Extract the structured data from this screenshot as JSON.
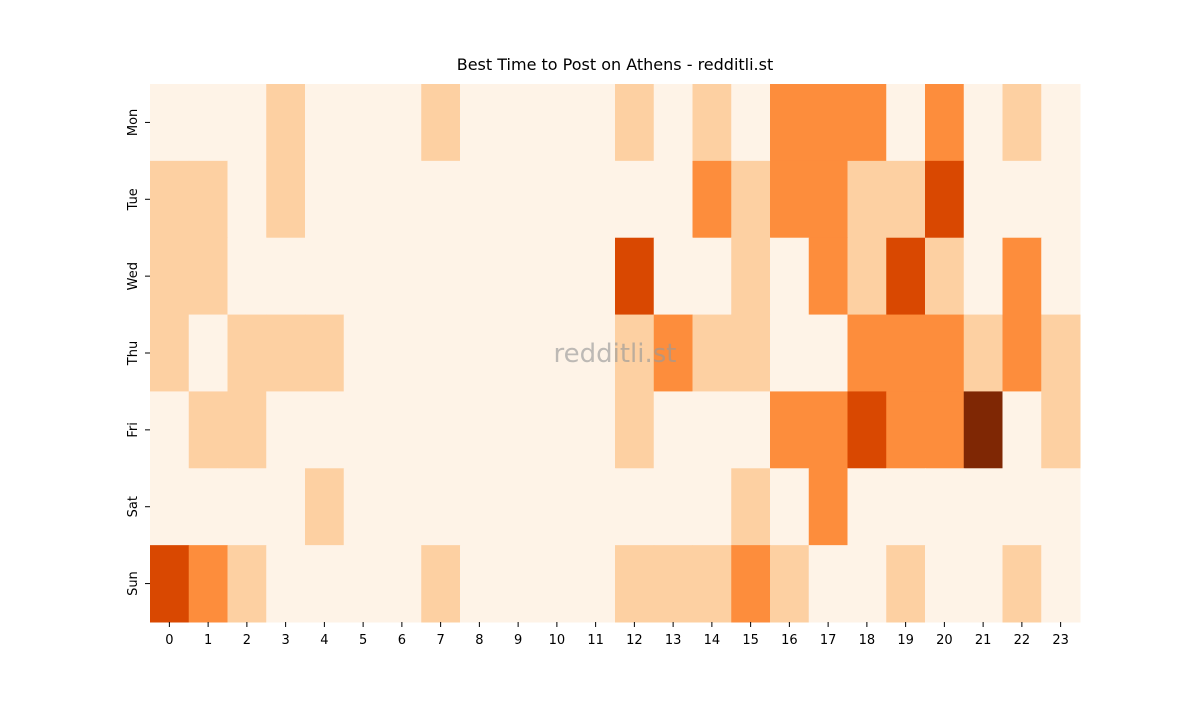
{
  "chart_data": {
    "type": "heatmap",
    "title": "Best Time to Post on Athens - redditli.st",
    "watermark": "redditli.st",
    "x": [
      0,
      1,
      2,
      3,
      4,
      5,
      6,
      7,
      8,
      9,
      10,
      11,
      12,
      13,
      14,
      15,
      16,
      17,
      18,
      19,
      20,
      21,
      22,
      23
    ],
    "categories": [
      "Mon",
      "Tue",
      "Wed",
      "Thu",
      "Fri",
      "Sat",
      "Sun"
    ],
    "colors": [
      "#fef3e7",
      "#fdd0a2",
      "#fd8d3c",
      "#d94801",
      "#7f2704"
    ],
    "values": [
      [
        0,
        0,
        0,
        1,
        0,
        0,
        0,
        1,
        0,
        0,
        0,
        0,
        1,
        0,
        1,
        0,
        2,
        2,
        2,
        0,
        2,
        0,
        1,
        0
      ],
      [
        1,
        1,
        0,
        1,
        0,
        0,
        0,
        0,
        0,
        0,
        0,
        0,
        0,
        0,
        2,
        1,
        2,
        2,
        1,
        1,
        3,
        0,
        0,
        0
      ],
      [
        1,
        1,
        0,
        0,
        0,
        0,
        0,
        0,
        0,
        0,
        0,
        0,
        3,
        0,
        0,
        1,
        0,
        2,
        1,
        3,
        1,
        0,
        2,
        0
      ],
      [
        1,
        0,
        1,
        1,
        1,
        0,
        0,
        0,
        0,
        0,
        0,
        0,
        1,
        2,
        1,
        1,
        0,
        0,
        2,
        2,
        2,
        1,
        2,
        1
      ],
      [
        0,
        1,
        1,
        0,
        0,
        0,
        0,
        0,
        0,
        0,
        0,
        0,
        1,
        0,
        0,
        0,
        2,
        2,
        3,
        2,
        2,
        4,
        0,
        1
      ],
      [
        0,
        0,
        0,
        0,
        1,
        0,
        0,
        0,
        0,
        0,
        0,
        0,
        0,
        0,
        0,
        1,
        0,
        2,
        0,
        0,
        0,
        0,
        0,
        0
      ],
      [
        3,
        2,
        1,
        0,
        0,
        0,
        0,
        1,
        0,
        0,
        0,
        0,
        1,
        1,
        1,
        2,
        1,
        0,
        0,
        1,
        0,
        0,
        1,
        0
      ]
    ]
  }
}
